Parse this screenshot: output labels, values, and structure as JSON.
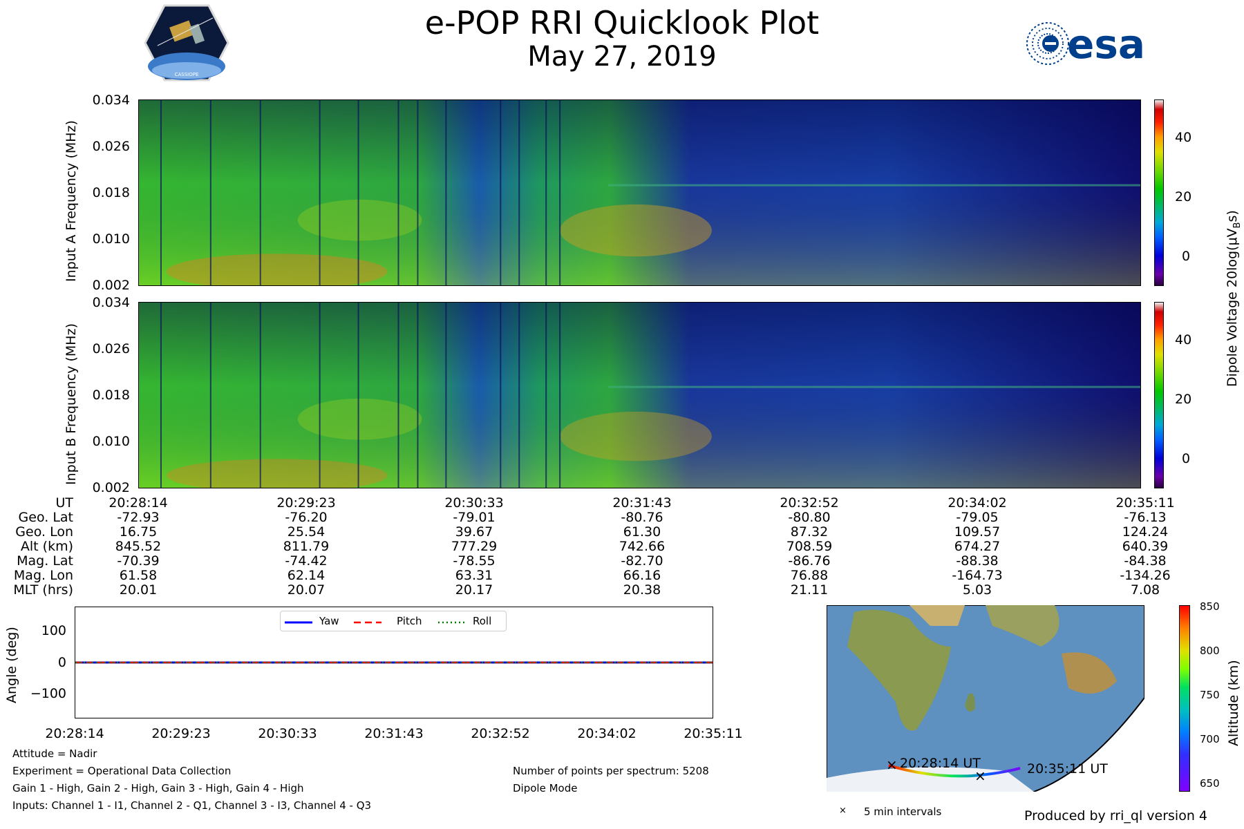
{
  "title": "e-POP RRI Quicklook Plot",
  "date": "May 27, 2019",
  "logos": {
    "left": "CASSIOPE",
    "right": "esa"
  },
  "colors": {
    "accent_blue": "#003f8c"
  },
  "spectrogram_colorbar": {
    "label": "Dipole Voltage 20log(μV",
    "label_sub": "B",
    "label_close": "s)",
    "ticks": [
      "40",
      "20",
      "0"
    ]
  },
  "attitude_legend": [
    "Yaw",
    "Pitch",
    "Roll"
  ],
  "attitude_ylabel": "Angle (deg)",
  "attitude_yticks": [
    "100",
    "0",
    "−100"
  ],
  "ephemeris": {
    "labels": [
      "UT",
      "Geo. Lat",
      "Geo. Lon",
      "Alt (km)",
      "Mag. Lat",
      "Mag. Lon",
      "MLT (hrs)"
    ],
    "columns": [
      [
        "20:28:14",
        "-72.93",
        "16.75",
        "845.52",
        "-70.39",
        "61.58",
        "20.01"
      ],
      [
        "20:29:23",
        "-76.20",
        "25.54",
        "811.79",
        "-74.42",
        "62.14",
        "20.07"
      ],
      [
        "20:30:33",
        "-79.01",
        "39.67",
        "777.29",
        "-78.55",
        "63.31",
        "20.17"
      ],
      [
        "20:31:43",
        "-80.76",
        "61.30",
        "742.66",
        "-82.70",
        "66.16",
        "20.38"
      ],
      [
        "20:32:52",
        "-80.80",
        "87.32",
        "708.59",
        "-86.76",
        "76.88",
        "21.11"
      ],
      [
        "20:34:02",
        "-79.05",
        "109.57",
        "674.27",
        "-88.38",
        "-164.73",
        "5.03"
      ],
      [
        "20:35:11",
        "-76.13",
        "124.24",
        "640.39",
        "-84.38",
        "-134.26",
        "7.08"
      ]
    ]
  },
  "info": {
    "attitude": "Attitude = Nadir",
    "experiment": "Experiment = Operational Data Collection",
    "gains": "Gain 1 - High, Gain 2 - High, Gain 3 - High, Gain 4 - High",
    "inputs": "Inputs: Channel 1 - I1, Channel 2 - Q1, Channel 3 - I3, Channel 4 - Q3",
    "points": "Number of points per spectrum: 5208",
    "mode": "Dipole Mode"
  },
  "map": {
    "start_label": "20:28:14 UT",
    "end_label": "20:35:11 UT",
    "legend": "5 min intervals",
    "alt_label": "Altitude (km)",
    "alt_ticks": [
      "850",
      "800",
      "750",
      "700",
      "650"
    ]
  },
  "footer": "Produced by rri_ql version 4",
  "chart_data": [
    {
      "type": "heatmap",
      "title": "Input A",
      "ylabel": "Input A Frequency (MHz)",
      "yticks": [
        "0.034",
        "0.026",
        "0.018",
        "0.010",
        "0.002"
      ],
      "ylim": [
        0.002,
        0.034
      ],
      "x": [
        "20:28:14",
        "20:29:23",
        "20:30:33",
        "20:31:43",
        "20:32:52",
        "20:34:02",
        "20:35:11"
      ],
      "colorbar_range": [
        -10,
        52
      ]
    },
    {
      "type": "heatmap",
      "title": "Input B",
      "ylabel": "Input B Frequency (MHz)",
      "yticks": [
        "0.034",
        "0.026",
        "0.018",
        "0.010",
        "0.002"
      ],
      "ylim": [
        0.002,
        0.034
      ],
      "x": [
        "20:28:14",
        "20:29:23",
        "20:30:33",
        "20:31:43",
        "20:32:52",
        "20:34:02",
        "20:35:11"
      ],
      "colorbar_range": [
        -10,
        52
      ]
    },
    {
      "type": "line",
      "ylabel": "Angle (deg)",
      "ylim": [
        -180,
        180
      ],
      "x": [
        "20:28:14",
        "20:29:23",
        "20:30:33",
        "20:31:43",
        "20:32:52",
        "20:34:02",
        "20:35:11"
      ],
      "series": [
        {
          "name": "Yaw",
          "values": [
            0,
            0,
            0,
            0,
            0,
            0,
            0
          ]
        },
        {
          "name": "Pitch",
          "values": [
            0,
            0,
            0,
            0,
            0,
            0,
            0
          ]
        },
        {
          "name": "Roll",
          "values": [
            0,
            0,
            0,
            0,
            0,
            0,
            0
          ]
        }
      ]
    }
  ]
}
